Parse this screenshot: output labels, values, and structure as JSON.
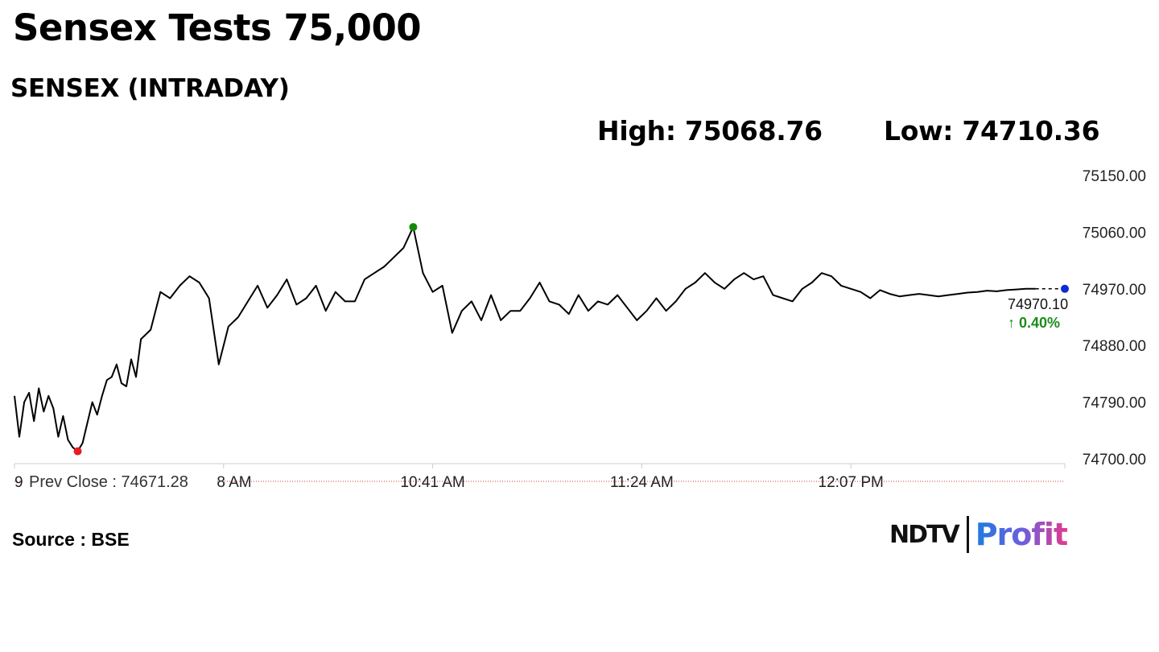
{
  "header": {
    "title": "Sensex Tests 75,000",
    "subtitle": "SENSEX (INTRADAY)",
    "high_text": "High: 75068.76",
    "low_text": "Low: 74710.36"
  },
  "chart_data": {
    "type": "line",
    "title": "SENSEX (INTRADAY)",
    "xlabel": "",
    "ylabel": "",
    "ylim": [
      74700,
      75150
    ],
    "yticks": [
      "75150.00",
      "75060.00",
      "74970.00",
      "74880.00",
      "74790.00",
      "74700.00"
    ],
    "xticks": [
      "9:15 AM",
      "9:58 AM",
      "10:41 AM",
      "11:24 AM",
      "12:07 PM"
    ],
    "xtick_minutes": [
      0,
      43,
      86,
      129,
      172
    ],
    "x_end_minute": 216,
    "grid": false,
    "series": [
      {
        "color": "#000000",
        "x": [
          0,
          1,
          2,
          3,
          4,
          5,
          6,
          7,
          8,
          9,
          10,
          11,
          12,
          13,
          14,
          16,
          17,
          18,
          19,
          20,
          21,
          22,
          23,
          24,
          25,
          26,
          28,
          30,
          32,
          34,
          36,
          38,
          40,
          42,
          44,
          46,
          48,
          50,
          52,
          54,
          56,
          58,
          60,
          62,
          64,
          66,
          68,
          70,
          72,
          74,
          76,
          78,
          80,
          82,
          84,
          86,
          88,
          90,
          92,
          94,
          96,
          98,
          100,
          102,
          104,
          106,
          108,
          110,
          112,
          114,
          116,
          118,
          120,
          122,
          124,
          126,
          128,
          130,
          132,
          134,
          136,
          138,
          140,
          142,
          144,
          146,
          148,
          150,
          152,
          154,
          156,
          158,
          160,
          162,
          164,
          166,
          168,
          170,
          172,
          174,
          176,
          178,
          180,
          182,
          184,
          186,
          188,
          190,
          192,
          194,
          196,
          198,
          200,
          202,
          204,
          206,
          208,
          210
        ],
        "values": [
          74800,
          74735,
          74790,
          74805,
          74760,
          74812,
          74775,
          74800,
          74780,
          74735,
          74768,
          74730,
          74718,
          74712,
          74725,
          74790,
          74770,
          74800,
          74825,
          74830,
          74850,
          74820,
          74815,
          74858,
          74830,
          74890,
          74905,
          74965,
          74955,
          74975,
          74990,
          74980,
          74955,
          74850,
          74910,
          74925,
          74950,
          74975,
          74940,
          74960,
          74985,
          74945,
          74955,
          74975,
          74935,
          74965,
          74950,
          74950,
          74985,
          74995,
          75005,
          75020,
          75035,
          75068,
          74995,
          74965,
          74975,
          74900,
          74935,
          74950,
          74920,
          74960,
          74920,
          74935,
          74935,
          74955,
          74980,
          74950,
          74945,
          74930,
          74960,
          74935,
          74950,
          74945,
          74960,
          74940,
          74920,
          74935,
          74955,
          74935,
          74950,
          74970,
          74980,
          74995,
          74980,
          74970,
          74985,
          74995,
          74985,
          74990,
          74960,
          74955,
          74950,
          74970,
          74980,
          74995,
          74990,
          74975,
          74970,
          74965,
          74955,
          74968,
          74962,
          74958,
          74960,
          74962,
          74960,
          74958,
          74960,
          74962,
          74964,
          74965,
          74967,
          74966,
          74968,
          74969,
          74970,
          74970
        ]
      }
    ],
    "prev_close": 74671.28,
    "prev_close_label": "Prev Close : 74671.28",
    "last_value_label": "74970.10",
    "change_label": "↑ 0.40%",
    "colors": {
      "line": "#000000",
      "high": "#138a07",
      "low": "#e61e1e",
      "last": "#0c2ad6",
      "change": "#1a8c1a",
      "axis": "#cccccc",
      "prev_close": "#d23a3a"
    }
  },
  "footer": {
    "source": "Source : BSE",
    "logo_ndtv": "NDTV",
    "logo_profit": "Profit"
  }
}
